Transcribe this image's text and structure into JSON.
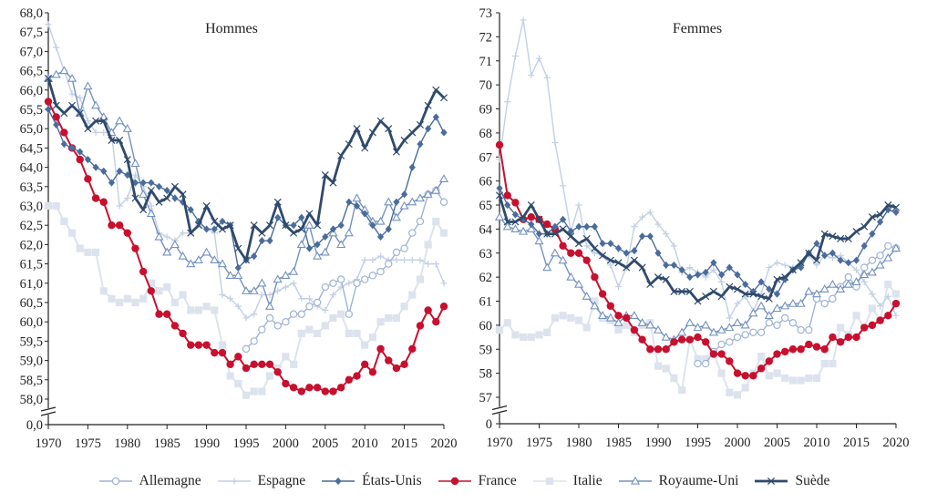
{
  "chart_data": [
    {
      "type": "line",
      "title": "Hommes",
      "xlabel": "",
      "ylabel": "",
      "x_ticks": [
        "1970",
        "1975",
        "1980",
        "1985",
        "1990",
        "1995",
        "2000",
        "2005",
        "2010",
        "2015",
        "2020"
      ],
      "y_ticks": [
        "58,0",
        "58,5",
        "59,0",
        "59,5",
        "60,0",
        "60,5",
        "61,0",
        "61,5",
        "62,0",
        "62,5",
        "63,0",
        "63,5",
        "64,0",
        "64,5",
        "65,0",
        "65,5",
        "66,0",
        "66,5",
        "67,0",
        "67,5",
        "68,0"
      ],
      "y_zero_label": "0,0",
      "ylim": [
        58,
        68
      ],
      "y_axis_break": true,
      "x_start": 1970,
      "series": [
        {
          "name": "Allemagne",
          "start": 1995,
          "values": [
            59.3,
            59.5,
            59.8,
            60.1,
            59.9,
            60.0,
            60.2,
            60.2,
            60.4,
            60.5,
            60.9,
            61.0,
            61.1,
            60.2,
            61.0,
            61.1,
            61.2,
            61.3,
            61.5,
            61.8,
            61.9,
            62.3,
            62.6,
            63.3,
            63.4,
            63.1
          ]
        },
        {
          "name": "Espagne",
          "start": 1970,
          "values": [
            67.7,
            67.1,
            66.5,
            65.9,
            65.8,
            65.2,
            64.9,
            64.9,
            64.9,
            63.0,
            63.2,
            63.8,
            63.5,
            63.0,
            62.3,
            62.2,
            62.1,
            62.3,
            62.3,
            62.5,
            62.4,
            62.3,
            60.7,
            60.6,
            60.4,
            60.1,
            60.2,
            60.7,
            60.7,
            60.8,
            60.9,
            61.0,
            60.6,
            60.6,
            60.4,
            60.3,
            60.7,
            60.9,
            61.0,
            61.1,
            61.6,
            61.6,
            61.7,
            61.6,
            61.6,
            61.6,
            61.6,
            61.6,
            61.5,
            61.5,
            61.0
          ]
        },
        {
          "name": "États-Unis",
          "start": 1970,
          "values": [
            65.5,
            65.1,
            64.6,
            64.5,
            64.4,
            64.2,
            64.0,
            63.9,
            63.6,
            63.9,
            63.8,
            63.6,
            63.6,
            63.6,
            63.5,
            63.4,
            63.2,
            63.1,
            62.9,
            62.6,
            62.4,
            62.4,
            62.6,
            62.5,
            61.4,
            61.6,
            61.7,
            62.1,
            62.1,
            62.7,
            62.5,
            62.5,
            62.7,
            61.9,
            62.0,
            62.2,
            62.4,
            62.5,
            63.1,
            63.0,
            62.8,
            62.5,
            62.2,
            62.4,
            63.1,
            63.3,
            64.0,
            64.6,
            65.0,
            65.3,
            64.9
          ]
        },
        {
          "name": "France",
          "start": 1970,
          "values": [
            65.7,
            65.3,
            64.9,
            64.5,
            64.2,
            63.7,
            63.2,
            63.1,
            62.5,
            62.5,
            62.3,
            61.9,
            61.3,
            60.8,
            60.2,
            60.2,
            59.9,
            59.7,
            59.4,
            59.4,
            59.4,
            59.2,
            59.2,
            58.9,
            59.1,
            58.8,
            58.9,
            58.9,
            58.9,
            58.7,
            58.4,
            58.3,
            58.2,
            58.3,
            58.3,
            58.2,
            58.2,
            58.3,
            58.5,
            58.6,
            58.9,
            58.7,
            59.3,
            59.0,
            58.8,
            58.9,
            59.3,
            59.9,
            60.3,
            60.0,
            60.4
          ]
        },
        {
          "name": "Italie",
          "start": 1970,
          "values": [
            63.0,
            63.0,
            62.6,
            62.3,
            61.9,
            61.8,
            61.8,
            60.8,
            60.6,
            60.5,
            60.6,
            60.5,
            60.6,
            61.0,
            60.8,
            60.9,
            60.5,
            60.7,
            60.3,
            60.3,
            60.4,
            60.3,
            59.4,
            58.6,
            58.4,
            58.1,
            58.2,
            58.2,
            58.6,
            58.8,
            59.1,
            58.9,
            59.7,
            59.8,
            59.7,
            59.9,
            60.1,
            60.2,
            59.7,
            59.7,
            59.4,
            59.6,
            60.0,
            60.1,
            60.1,
            60.4,
            60.7,
            61.1,
            62.0,
            62.6,
            62.3
          ]
        },
        {
          "name": "Royaume-Uni",
          "start": 1970,
          "values": [
            66.3,
            66.4,
            66.5,
            66.3,
            65.4,
            66.1,
            65.6,
            65.3,
            64.9,
            65.2,
            65.0,
            64.1,
            63.3,
            62.8,
            62.2,
            61.8,
            62.0,
            61.7,
            61.5,
            61.6,
            61.8,
            61.6,
            61.5,
            61.2,
            61.2,
            60.8,
            60.8,
            61.0,
            60.4,
            61.1,
            61.2,
            61.3,
            62.0,
            62.5,
            61.7,
            61.8,
            62.3,
            62.0,
            62.3,
            63.2,
            62.9,
            62.6,
            62.6,
            63.1,
            62.7,
            63.0,
            63.1,
            63.2,
            63.3,
            63.4,
            63.7
          ]
        },
        {
          "name": "Suède",
          "start": 1970,
          "values": [
            66.3,
            65.6,
            65.4,
            65.6,
            65.4,
            65.0,
            65.2,
            65.2,
            64.7,
            64.7,
            64.2,
            63.2,
            62.9,
            63.4,
            63.1,
            63.2,
            63.5,
            63.3,
            62.3,
            62.5,
            63.0,
            62.6,
            62.4,
            62.5,
            61.9,
            61.6,
            62.5,
            62.3,
            62.5,
            63.1,
            62.5,
            62.3,
            62.4,
            62.8,
            62.5,
            63.8,
            63.6,
            64.3,
            64.6,
            65.0,
            64.5,
            64.9,
            65.2,
            65.0,
            64.4,
            64.7,
            64.9,
            65.1,
            65.6,
            66.0,
            65.8
          ]
        }
      ]
    },
    {
      "type": "line",
      "title": "Femmes",
      "xlabel": "",
      "ylabel": "",
      "x_ticks": [
        "1970",
        "1975",
        "1980",
        "1985",
        "1990",
        "1995",
        "2000",
        "2005",
        "2010",
        "2015",
        "2020"
      ],
      "y_ticks": [
        "57",
        "58",
        "59",
        "60",
        "61",
        "62",
        "63",
        "64",
        "65",
        "66",
        "67",
        "68",
        "69",
        "70",
        "71",
        "72",
        "73"
      ],
      "y_zero_label": "0",
      "ylim": [
        57,
        73
      ],
      "y_axis_break": true,
      "x_start": 1970,
      "series": [
        {
          "name": "Allemagne",
          "start": 1995,
          "values": [
            58.4,
            58.4,
            58.9,
            59.2,
            59.3,
            59.5,
            59.6,
            59.7,
            59.7,
            60.1,
            60.0,
            60.3,
            60.1,
            59.8,
            59.8,
            61.1,
            60.9,
            61.1,
            61.6,
            62.0,
            61.6,
            62.4,
            62.7,
            62.9,
            63.3,
            63.2
          ]
        },
        {
          "name": "Espagne",
          "start": 1970,
          "values": [
            66.9,
            69.3,
            71.2,
            72.7,
            70.4,
            71.1,
            70.3,
            67.6,
            65.8,
            63.9,
            65.0,
            63.3,
            63.0,
            62.9,
            62.5,
            61.6,
            62.4,
            64.1,
            64.5,
            64.7,
            64.2,
            63.8,
            63.3,
            62.2,
            62.4,
            62.2,
            62.0,
            62.3,
            61.8,
            60.3,
            60.9,
            61.2,
            60.6,
            61.3,
            62.4,
            62.6,
            62.5,
            62.4,
            62.6,
            62.9,
            62.5,
            62.9,
            62.8,
            62.9,
            62.6,
            62.3,
            61.8,
            61.3,
            60.8,
            61.2,
            60.4
          ]
        },
        {
          "name": "États-Unis",
          "start": 1970,
          "values": [
            65.7,
            65.0,
            64.6,
            64.4,
            64.2,
            63.8,
            63.8,
            64.1,
            64.4,
            63.9,
            64.1,
            64.1,
            64.1,
            63.4,
            63.4,
            63.2,
            63.0,
            63.1,
            63.7,
            63.7,
            63.0,
            62.5,
            62.5,
            62.3,
            62.0,
            62.1,
            62.2,
            62.6,
            62.1,
            62.4,
            62.1,
            61.7,
            61.4,
            61.8,
            61.5,
            61.3,
            61.9,
            62.3,
            62.4,
            63.0,
            63.4,
            62.9,
            63.0,
            62.7,
            62.6,
            62.7,
            63.3,
            63.8,
            64.3,
            64.8,
            64.7
          ]
        },
        {
          "name": "France",
          "start": 1970,
          "values": [
            67.5,
            65.4,
            65.1,
            64.4,
            64.5,
            64.4,
            64.2,
            64.0,
            63.3,
            63.0,
            63.0,
            62.7,
            62.0,
            61.3,
            60.8,
            60.4,
            60.3,
            59.8,
            59.4,
            59.0,
            59.0,
            59.0,
            59.3,
            59.4,
            59.4,
            59.5,
            59.3,
            58.8,
            58.8,
            58.5,
            58.0,
            57.9,
            57.9,
            58.2,
            58.5,
            58.8,
            58.9,
            59.0,
            59.0,
            59.2,
            59.1,
            59.0,
            59.5,
            59.3,
            59.5,
            59.5,
            59.9,
            60.0,
            60.2,
            60.4,
            60.9
          ]
        },
        {
          "name": "Italie",
          "start": 1970,
          "values": [
            59.8,
            60.1,
            59.6,
            59.5,
            59.5,
            59.6,
            59.7,
            60.3,
            60.4,
            60.3,
            60.2,
            59.9,
            61.0,
            60.3,
            60.2,
            59.8,
            60.0,
            59.7,
            60.0,
            60.1,
            58.3,
            58.2,
            57.8,
            57.3,
            59.4,
            58.6,
            58.6,
            58.8,
            58.0,
            57.2,
            57.1,
            57.4,
            58.0,
            58.7,
            57.9,
            58.0,
            57.8,
            57.7,
            57.7,
            57.8,
            57.8,
            58.4,
            58.4,
            59.9,
            59.6,
            60.4,
            59.9,
            60.7,
            60.2,
            61.7,
            61.3
          ]
        },
        {
          "name": "Royaume-Uni",
          "start": 1970,
          "values": [
            64.5,
            64.1,
            64.0,
            63.9,
            64.0,
            63.5,
            62.4,
            63.0,
            62.7,
            62.0,
            61.7,
            61.2,
            60.8,
            60.4,
            60.3,
            60.1,
            60.4,
            60.4,
            60.1,
            60.0,
            59.8,
            59.5,
            59.4,
            59.7,
            60.1,
            59.9,
            60.0,
            59.7,
            59.8,
            59.9,
            60.1,
            60.0,
            60.5,
            60.8,
            60.4,
            60.7,
            60.8,
            60.9,
            60.9,
            61.4,
            61.3,
            61.5,
            61.7,
            61.5,
            61.7,
            61.8,
            62.1,
            62.2,
            62.5,
            62.8,
            63.2
          ]
        },
        {
          "name": "Suède",
          "start": 1970,
          "values": [
            65.4,
            64.3,
            64.3,
            64.5,
            65.0,
            64.4,
            63.8,
            63.8,
            64.0,
            63.7,
            63.4,
            63.6,
            63.2,
            62.9,
            62.7,
            62.6,
            62.4,
            62.7,
            62.4,
            61.7,
            62.0,
            61.9,
            61.4,
            61.4,
            61.4,
            61.0,
            61.2,
            61.4,
            61.2,
            61.6,
            61.5,
            61.3,
            61.3,
            61.2,
            61.1,
            61.9,
            62.0,
            62.3,
            62.6,
            63.0,
            62.7,
            63.8,
            63.7,
            63.6,
            63.6,
            63.9,
            64.1,
            64.5,
            64.6,
            65.0,
            64.9
          ]
        }
      ]
    }
  ],
  "legend": [
    {
      "name": "Allemagne",
      "color": "#9fb4d4",
      "marker": "circle-open"
    },
    {
      "name": "Espagne",
      "color": "#c3d0e4",
      "marker": "plus"
    },
    {
      "name": "États-Unis",
      "color": "#4a6c9c",
      "marker": "diamond"
    },
    {
      "name": "France",
      "color": "#c8102e",
      "marker": "circle"
    },
    {
      "name": "Italie",
      "color": "#dde3ee",
      "marker": "square"
    },
    {
      "name": "Royaume-Uni",
      "color": "#7391c0",
      "marker": "triangle-open"
    },
    {
      "name": "Suède",
      "color": "#2f4a6d",
      "marker": "x"
    }
  ],
  "legend_position": "bottom"
}
